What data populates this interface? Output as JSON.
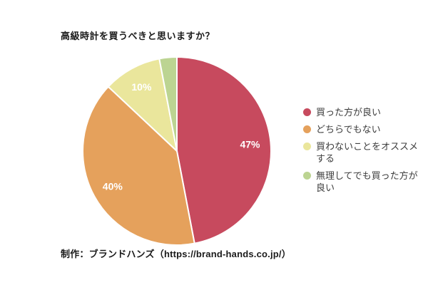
{
  "title": "高級時計を買うべきと思いますか？",
  "caption": "制作：ブランドハンズ（https://brand-hands.co.jp/）",
  "chart_data": {
    "type": "pie",
    "title": "高級時計を買うべきと思いますか？",
    "start_angle": "top",
    "direction": "clockwise",
    "legend_position": "right",
    "slice_label_color": "#ffffff",
    "slice_border_color": "#ffffff",
    "slices": [
      {
        "label": "買った方が良い",
        "value": 47,
        "pct_label": "47%",
        "color": "#c74a5e"
      },
      {
        "label": "どちらでもない",
        "value": 40,
        "pct_label": "40%",
        "color": "#e5a15c"
      },
      {
        "label": "買わないことをオススメする",
        "value": 10,
        "pct_label": "10%",
        "color": "#eae69c"
      },
      {
        "label": "無理してでも買った方が良い",
        "value": 3,
        "pct_label": "",
        "color": "#bcd492"
      }
    ]
  }
}
